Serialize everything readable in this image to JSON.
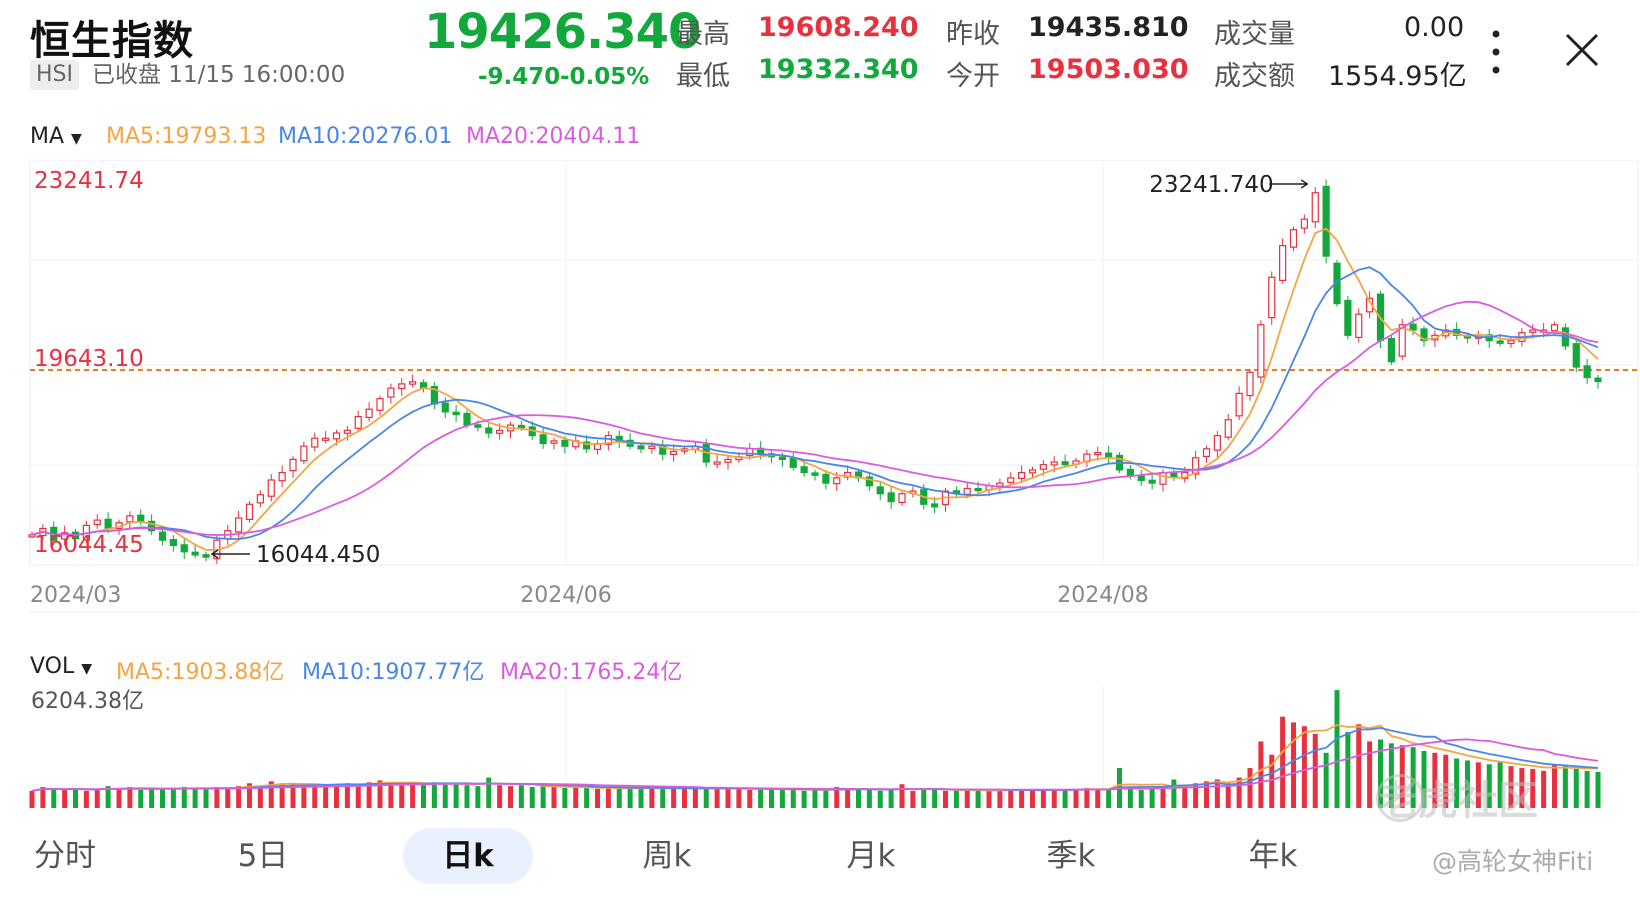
{
  "header": {
    "title": "恒生指数",
    "code": "HSI",
    "status": "已收盘 11/15 16:00:00",
    "price": "19426.340",
    "change": "-9.470",
    "change_pct": "-0.05%",
    "high_label": "最高",
    "high": "19608.240",
    "low_label": "最低",
    "low": "19332.340",
    "prev_close_label": "昨收",
    "prev_close": "19435.810",
    "open_label": "今开",
    "open": "19503.030",
    "volume_label": "成交量",
    "volume": "0.00",
    "turnover_label": "成交额",
    "turnover": "1554.95亿"
  },
  "icons": {
    "more": "more-vertical-icon",
    "close": "close-icon"
  },
  "ma": {
    "label": "MA",
    "ma5": "MA5:19793.13",
    "ma10": "MA10:20276.01",
    "ma20": "MA20:20404.11"
  },
  "vol": {
    "label": "VOL",
    "ma5": "MA5:1903.88亿",
    "ma10": "MA10:1907.77亿",
    "ma20": "MA20:1765.24亿",
    "max_label": "6204.38亿"
  },
  "tabs": [
    {
      "label": "分时"
    },
    {
      "label": "5日"
    },
    {
      "label": "日k"
    },
    {
      "label": "周k"
    },
    {
      "label": "月k"
    },
    {
      "label": "季k"
    },
    {
      "label": "年k"
    }
  ],
  "watermark": {
    "text": "老虎社区",
    "user": "@高轮女神Fiti"
  },
  "colors": {
    "up": "#e8303e",
    "down": "#13a83b",
    "ma5": "#f5a442",
    "ma10": "#4a86e8",
    "ma20": "#d95ce0",
    "ref_line": "#f07b1d"
  },
  "chart_data": {
    "type": "candlestick",
    "ylim": [
      16044.45,
      23241.74
    ],
    "y_top_label": "23241.74",
    "y_ref_label": "19643.10",
    "y_ref": 19643.1,
    "y_bottom_label": "16044.45",
    "x_ticks": [
      "2024/03",
      "2024/06",
      "2024/08"
    ],
    "annotations": [
      {
        "text": "23241.740",
        "type": "high"
      },
      {
        "text": "16044.450",
        "type": "low"
      }
    ],
    "close_series": [
      16520,
      16640,
      16420,
      16560,
      16450,
      16700,
      16800,
      16650,
      16750,
      16880,
      16760,
      16600,
      16420,
      16320,
      16200,
      16140,
      16100,
      16420,
      16600,
      16840,
      17100,
      17280,
      17560,
      17700,
      17950,
      18200,
      18350,
      18350,
      18450,
      18500,
      18760,
      18900,
      19100,
      19300,
      19380,
      19420,
      19300,
      19000,
      18850,
      18800,
      18600,
      18560,
      18450,
      18500,
      18600,
      18550,
      18400,
      18250,
      18300,
      18200,
      18300,
      18150,
      18250,
      18400,
      18300,
      18200,
      18150,
      18200,
      18050,
      18100,
      18150,
      18200,
      17900,
      17900,
      17950,
      18000,
      18150,
      18050,
      18000,
      17950,
      17800,
      17700,
      17650,
      17500,
      17600,
      17700,
      17600,
      17450,
      17300,
      17150,
      17300,
      17350,
      17100,
      17050,
      17350,
      17300,
      17400,
      17380,
      17450,
      17500,
      17600,
      17700,
      17750,
      17850,
      17900,
      17850,
      17920,
      18050,
      18080,
      18000,
      17750,
      17650,
      17550,
      17500,
      17700,
      17600,
      17700,
      17980,
      18150,
      18400,
      18700,
      19200,
      19600,
      20500,
      21400,
      22000,
      22300,
      22500,
      23000,
      21800,
      20900,
      20300,
      20700,
      21000,
      20200,
      19800,
      20500,
      20400,
      20200,
      20300,
      20400,
      20300,
      20250,
      20300,
      20200,
      20150,
      20200,
      20350,
      20400,
      20400,
      20500,
      20100,
      19700,
      19500,
      19426
    ],
    "vol_max": 6204.38,
    "volume_series": [
      900,
      1100,
      1000,
      950,
      1050,
      900,
      1000,
      1150,
      1000,
      1100,
      950,
      1000,
      1050,
      1000,
      1100,
      1000,
      1000,
      1100,
      1050,
      1150,
      1300,
      1150,
      1400,
      1300,
      1250,
      1200,
      1150,
      1200,
      1250,
      1300,
      1200,
      1350,
      1450,
      1350,
      1300,
      1250,
      1200,
      1350,
      1250,
      1300,
      1200,
      1150,
      1600,
      1200,
      1150,
      1200,
      1100,
      1150,
      1100,
      1050,
      1100,
      1050,
      1000,
      1100,
      1000,
      1050,
      1000,
      1100,
      1050,
      1000,
      1050,
      1000,
      1050,
      1000,
      1000,
      1050,
      950,
      1000,
      1000,
      950,
      1000,
      900,
      950,
      900,
      1100,
      1000,
      1050,
      950,
      900,
      950,
      1250,
      900,
      950,
      1000,
      900,
      950,
      900,
      950,
      900,
      950,
      1000,
      950,
      900,
      950,
      1000,
      950,
      1000,
      1050,
      950,
      1000,
      2100,
      1100,
      950,
      1000,
      1050,
      1500,
      1200,
      1300,
      1400,
      1500,
      1300,
      1600,
      2100,
      3500,
      2800,
      4800,
      4500,
      4300,
      3900,
      2900,
      6200,
      4000,
      4400,
      3500,
      3600,
      3400,
      3300,
      3200,
      3000,
      2900,
      2800,
      2600,
      2500,
      2400,
      2300,
      2400,
      2200,
      2100,
      2050,
      1950,
      2300,
      2200,
      2050,
      1950,
      1900
    ],
    "ma5_legend": "MA5:19793.13",
    "ma10_legend": "MA10:20276.01",
    "ma20_legend": "MA20:20404.11"
  }
}
